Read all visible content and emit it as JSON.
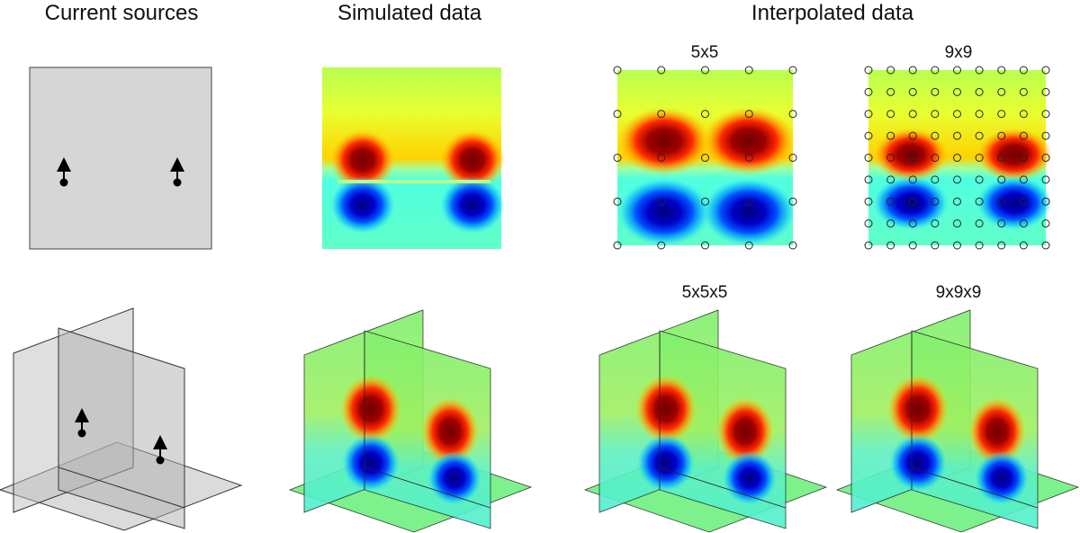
{
  "headings": {
    "current_sources": "Current sources",
    "simulated_data": "Simulated data",
    "interpolated_data": "Interpolated data"
  },
  "panels": {
    "top_5x5": "5x5",
    "top_9x9": "9x9",
    "bottom_5x5x5": "5x5x5",
    "bottom_9x9x9": "9x9x9"
  }
}
